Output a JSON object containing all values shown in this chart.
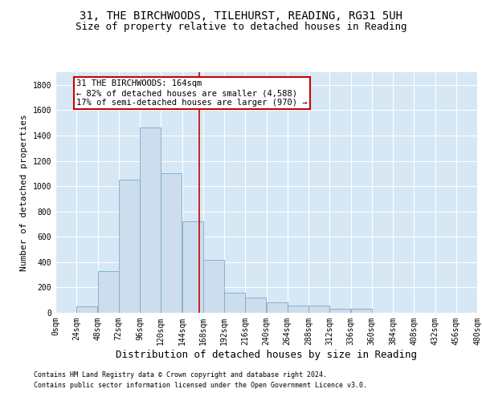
{
  "title1": "31, THE BIRCHWOODS, TILEHURST, READING, RG31 5UH",
  "title2": "Size of property relative to detached houses in Reading",
  "xlabel": "Distribution of detached houses by size in Reading",
  "ylabel": "Number of detached properties",
  "bar_values": [
    0,
    50,
    330,
    1050,
    1460,
    1100,
    720,
    420,
    160,
    120,
    80,
    60,
    60,
    30,
    30,
    0,
    0,
    0,
    0,
    0
  ],
  "bin_edges": [
    0,
    24,
    48,
    72,
    96,
    120,
    144,
    168,
    192,
    216,
    240,
    264,
    288,
    312,
    336,
    360,
    384,
    408,
    432,
    456,
    480
  ],
  "bar_color": "#ccdded",
  "bar_edge_color": "#7aaac8",
  "vline_x": 164,
  "vline_color": "#cc0000",
  "annotation_text": "31 THE BIRCHWOODS: 164sqm\n← 82% of detached houses are smaller (4,588)\n17% of semi-detached houses are larger (970) →",
  "annotation_bbox_facecolor": "#ffffff",
  "annotation_bbox_edgecolor": "#cc0000",
  "ylim": [
    0,
    1900
  ],
  "yticks": [
    0,
    200,
    400,
    600,
    800,
    1000,
    1200,
    1400,
    1600,
    1800
  ],
  "plot_bg_color": "#d6e8f5",
  "grid_color": "#ffffff",
  "footnote1": "Contains HM Land Registry data © Crown copyright and database right 2024.",
  "footnote2": "Contains public sector information licensed under the Open Government Licence v3.0.",
  "title1_fontsize": 10,
  "title2_fontsize": 9,
  "xlabel_fontsize": 9,
  "ylabel_fontsize": 8,
  "tick_fontsize": 7,
  "annot_fontsize": 7.5,
  "footnote_fontsize": 6
}
